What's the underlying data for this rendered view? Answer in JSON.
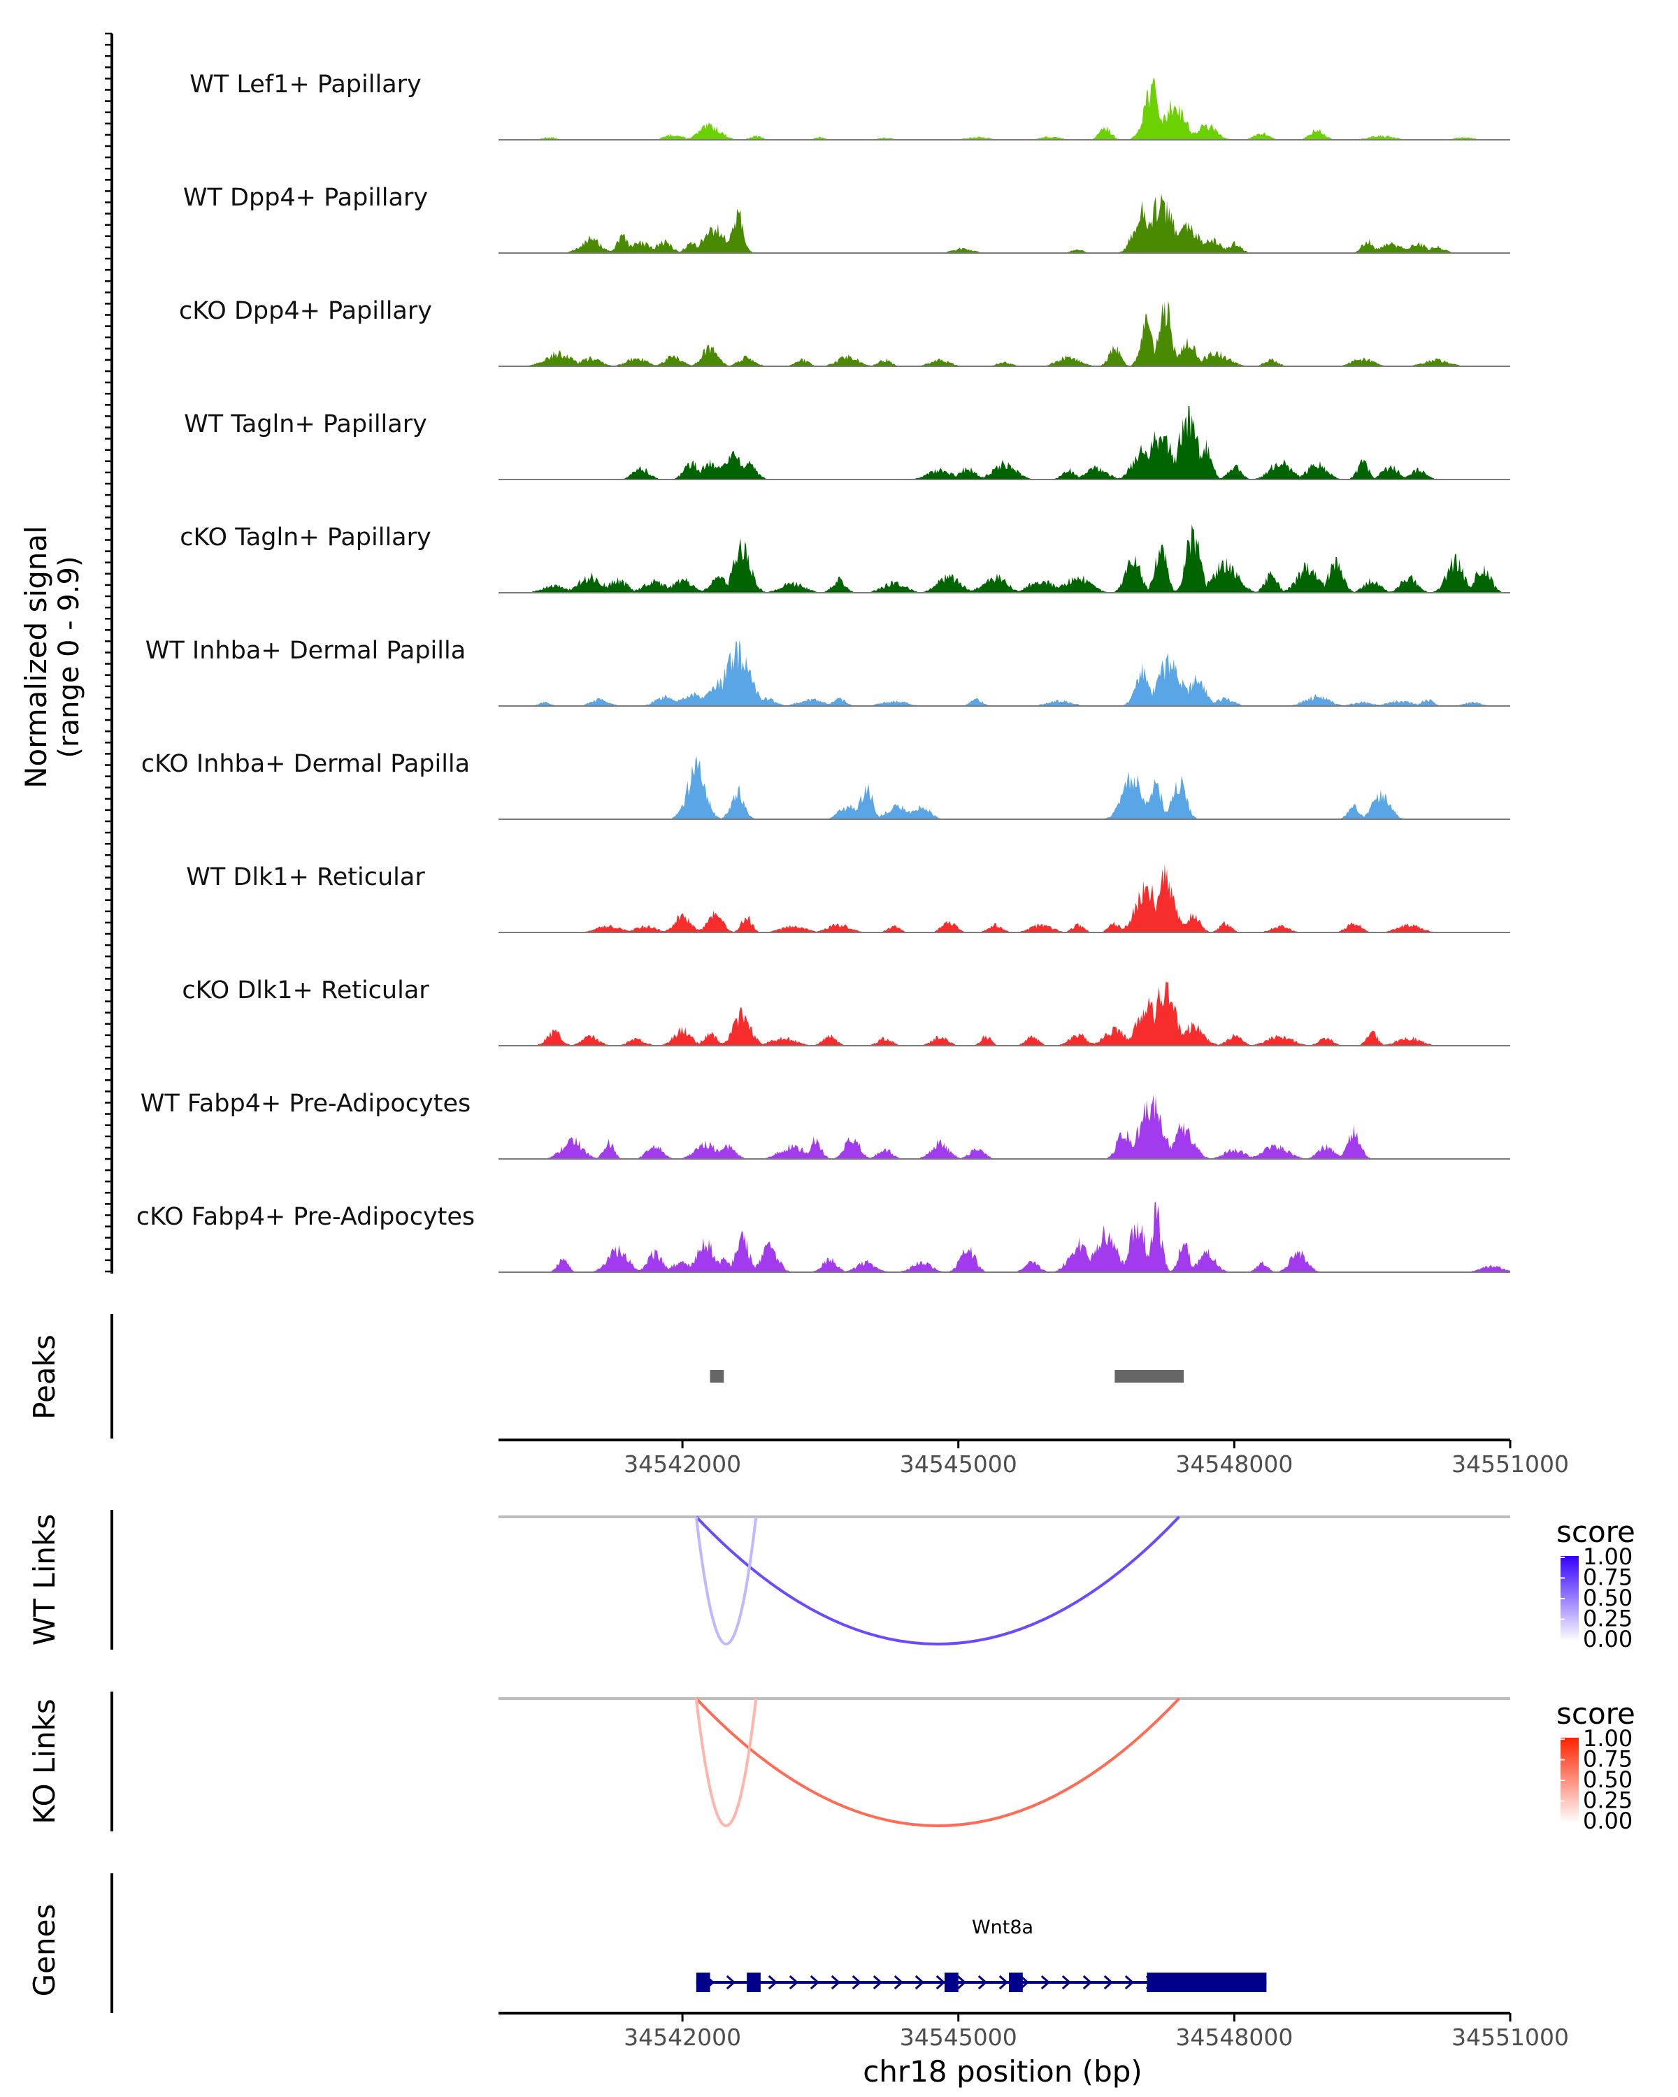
{
  "chart_data": {
    "type": "coverage",
    "chromosome": "chr18",
    "x_range": [
      34540000,
      34551000
    ],
    "x_ticks": [
      34542000,
      34545000,
      34548000,
      34551000
    ],
    "x_tick_labels": [
      "34542000",
      "34545000",
      "34548000",
      "34551000"
    ],
    "xlabel": "chr18 position (bp)",
    "ylabel": "Normalized signal",
    "ylabel_sub": "(range 0 - 9.9)",
    "y_range": [
      0,
      9.9
    ],
    "tracks": [
      {
        "name": "WT Lef1+ Papillary",
        "color": "#6CD100",
        "peaks": [
          [
            34540550,
            0.4
          ],
          [
            34541900,
            0.8
          ],
          [
            34542300,
            2.2
          ],
          [
            34542800,
            0.6
          ],
          [
            34543500,
            0.4
          ],
          [
            34544200,
            0.3
          ],
          [
            34545200,
            0.4
          ],
          [
            34546000,
            0.5
          ],
          [
            34546600,
            1.8
          ],
          [
            34547100,
            8.2
          ],
          [
            34547350,
            5.5
          ],
          [
            34547700,
            2.2
          ],
          [
            34548300,
            1.0
          ],
          [
            34548900,
            1.5
          ],
          [
            34549600,
            0.6
          ],
          [
            34550500,
            0.4
          ]
        ]
      },
      {
        "name": "WT Dpp4+ Papillary",
        "color": "#4A8A00",
        "peaks": [
          [
            34541000,
            2.2
          ],
          [
            34541350,
            2.5
          ],
          [
            34541550,
            1.6
          ],
          [
            34541800,
            1.8
          ],
          [
            34542100,
            1.5
          ],
          [
            34542350,
            3.8
          ],
          [
            34542600,
            6.0
          ],
          [
            34545050,
            0.7
          ],
          [
            34546300,
            0.6
          ],
          [
            34547000,
            6.5
          ],
          [
            34547200,
            7.5
          ],
          [
            34547500,
            4.0
          ],
          [
            34547750,
            2.0
          ],
          [
            34548000,
            1.5
          ],
          [
            34549450,
            2.0
          ],
          [
            34549700,
            1.4
          ],
          [
            34550000,
            1.5
          ],
          [
            34550200,
            1.0
          ]
        ]
      },
      {
        "name": "cKO Dpp4+ Papillary",
        "color": "#4A8A00",
        "peaks": [
          [
            34540650,
            2.0
          ],
          [
            34541000,
            1.2
          ],
          [
            34541500,
            1.3
          ],
          [
            34541900,
            1.5
          ],
          [
            34542300,
            3.0
          ],
          [
            34542700,
            1.4
          ],
          [
            34543300,
            1.0
          ],
          [
            34543800,
            1.5
          ],
          [
            34544200,
            1.0
          ],
          [
            34544800,
            1.0
          ],
          [
            34545500,
            0.6
          ],
          [
            34546200,
            1.5
          ],
          [
            34546700,
            2.8
          ],
          [
            34547050,
            6.8
          ],
          [
            34547250,
            9.5
          ],
          [
            34547500,
            4.0
          ],
          [
            34547800,
            2.0
          ],
          [
            34548400,
            1.0
          ],
          [
            34549400,
            1.2
          ],
          [
            34550200,
            1.0
          ]
        ]
      },
      {
        "name": "WT Tagln+ Papillary",
        "color": "#006400",
        "peaks": [
          [
            34541550,
            1.8
          ],
          [
            34542100,
            2.5
          ],
          [
            34542300,
            2.8
          ],
          [
            34542550,
            4.0
          ],
          [
            34542700,
            2.5
          ],
          [
            34544800,
            1.5
          ],
          [
            34545100,
            1.8
          ],
          [
            34545500,
            2.5
          ],
          [
            34546200,
            1.5
          ],
          [
            34546500,
            1.8
          ],
          [
            34547000,
            4.5
          ],
          [
            34547200,
            7.0
          ],
          [
            34547500,
            9.9
          ],
          [
            34547700,
            5.0
          ],
          [
            34548000,
            2.0
          ],
          [
            34548500,
            2.8
          ],
          [
            34548900,
            2.5
          ],
          [
            34549400,
            2.8
          ],
          [
            34549700,
            2.0
          ],
          [
            34550000,
            1.5
          ]
        ]
      },
      {
        "name": "cKO Tagln+ Papillary",
        "color": "#006400",
        "peaks": [
          [
            34540600,
            1.2
          ],
          [
            34541000,
            2.5
          ],
          [
            34541300,
            2.0
          ],
          [
            34541700,
            1.8
          ],
          [
            34542000,
            2.0
          ],
          [
            34542400,
            2.5
          ],
          [
            34542650,
            7.0
          ],
          [
            34543200,
            1.5
          ],
          [
            34543700,
            2.0
          ],
          [
            34544300,
            1.5
          ],
          [
            34544900,
            2.5
          ],
          [
            34545400,
            2.5
          ],
          [
            34545900,
            2.0
          ],
          [
            34546300,
            2.5
          ],
          [
            34546900,
            5.5
          ],
          [
            34547200,
            7.5
          ],
          [
            34547550,
            9.5
          ],
          [
            34547900,
            4.5
          ],
          [
            34548400,
            3.0
          ],
          [
            34548800,
            4.0
          ],
          [
            34549100,
            4.5
          ],
          [
            34549500,
            2.0
          ],
          [
            34549900,
            2.5
          ],
          [
            34550400,
            5.0
          ],
          [
            34550700,
            4.0
          ]
        ]
      },
      {
        "name": "WT Inhba+ Dermal Papilla",
        "color": "#59A5E5",
        "peaks": [
          [
            34540500,
            0.6
          ],
          [
            34541100,
            1.0
          ],
          [
            34541800,
            1.5
          ],
          [
            34542100,
            1.8
          ],
          [
            34542400,
            3.5
          ],
          [
            34542600,
            8.5
          ],
          [
            34542900,
            1.2
          ],
          [
            34543400,
            1.0
          ],
          [
            34543700,
            1.2
          ],
          [
            34544300,
            0.8
          ],
          [
            34545200,
            1.0
          ],
          [
            34546100,
            0.8
          ],
          [
            34547000,
            5.5
          ],
          [
            34547300,
            7.0
          ],
          [
            34547600,
            4.5
          ],
          [
            34547900,
            1.2
          ],
          [
            34548900,
            1.5
          ],
          [
            34549400,
            0.6
          ],
          [
            34549800,
            0.8
          ],
          [
            34550100,
            1.0
          ],
          [
            34550600,
            0.6
          ]
        ]
      },
      {
        "name": "cKO Inhba+ Dermal Papilla",
        "color": "#59A5E5",
        "peaks": [
          [
            34542150,
            8.0
          ],
          [
            34542600,
            4.5
          ],
          [
            34543800,
            2.0
          ],
          [
            34544000,
            5.0
          ],
          [
            34544350,
            2.0
          ],
          [
            34544600,
            2.0
          ],
          [
            34546900,
            6.5
          ],
          [
            34547150,
            5.5
          ],
          [
            34547400,
            6.0
          ],
          [
            34549300,
            2.0
          ],
          [
            34549600,
            4.0
          ]
        ]
      },
      {
        "name": "WT Dlk1+ Reticular",
        "color": "#F72D2D",
        "peaks": [
          [
            34541200,
            1.0
          ],
          [
            34541600,
            1.0
          ],
          [
            34542000,
            2.5
          ],
          [
            34542350,
            3.0
          ],
          [
            34542700,
            2.5
          ],
          [
            34543200,
            1.0
          ],
          [
            34543700,
            1.2
          ],
          [
            34544300,
            1.0
          ],
          [
            34544900,
            1.8
          ],
          [
            34545400,
            1.2
          ],
          [
            34545900,
            1.2
          ],
          [
            34546300,
            1.2
          ],
          [
            34546700,
            1.5
          ],
          [
            34547050,
            7.0
          ],
          [
            34547250,
            8.5
          ],
          [
            34547550,
            3.0
          ],
          [
            34547900,
            1.5
          ],
          [
            34548500,
            1.0
          ],
          [
            34549300,
            1.5
          ],
          [
            34549900,
            1.2
          ]
        ]
      },
      {
        "name": "cKO Dlk1+ Reticular",
        "color": "#F72D2D",
        "peaks": [
          [
            34540600,
            2.2
          ],
          [
            34541000,
            1.5
          ],
          [
            34541500,
            1.0
          ],
          [
            34542000,
            2.5
          ],
          [
            34542300,
            2.0
          ],
          [
            34542650,
            5.0
          ],
          [
            34543100,
            1.2
          ],
          [
            34543600,
            1.5
          ],
          [
            34544200,
            1.2
          ],
          [
            34544800,
            1.5
          ],
          [
            34545300,
            1.5
          ],
          [
            34545800,
            1.5
          ],
          [
            34546300,
            1.8
          ],
          [
            34546700,
            2.5
          ],
          [
            34547050,
            6.5
          ],
          [
            34547250,
            9.0
          ],
          [
            34547550,
            3.0
          ],
          [
            34548000,
            1.5
          ],
          [
            34548500,
            1.5
          ],
          [
            34549000,
            1.2
          ],
          [
            34549500,
            2.0
          ],
          [
            34549900,
            1.2
          ]
        ]
      },
      {
        "name": "WT Fabp4+ Pre-Adipocytes",
        "color": "#A23AEE",
        "peaks": [
          [
            34540800,
            3.0
          ],
          [
            34541200,
            2.5
          ],
          [
            34541700,
            2.0
          ],
          [
            34542250,
            2.5
          ],
          [
            34542500,
            2.0
          ],
          [
            34543200,
            2.0
          ],
          [
            34543450,
            3.0
          ],
          [
            34543850,
            3.5
          ],
          [
            34544200,
            1.5
          ],
          [
            34544800,
            2.5
          ],
          [
            34545200,
            1.5
          ],
          [
            34546800,
            4.5
          ],
          [
            34547100,
            8.5
          ],
          [
            34547450,
            5.0
          ],
          [
            34548000,
            1.5
          ],
          [
            34548450,
            2.0
          ],
          [
            34549000,
            2.0
          ],
          [
            34549300,
            4.5
          ]
        ]
      },
      {
        "name": "cKO Fabp4+ Pre-Adipocytes",
        "color": "#A23AEE",
        "peaks": [
          [
            34540700,
            2.0
          ],
          [
            34541300,
            3.5
          ],
          [
            34541700,
            3.0
          ],
          [
            34542000,
            1.5
          ],
          [
            34542250,
            5.0
          ],
          [
            34542450,
            2.0
          ],
          [
            34542650,
            5.5
          ],
          [
            34542950,
            4.0
          ],
          [
            34543600,
            2.0
          ],
          [
            34544000,
            1.5
          ],
          [
            34544600,
            1.5
          ],
          [
            34545100,
            4.0
          ],
          [
            34545800,
            1.5
          ],
          [
            34546300,
            4.5
          ],
          [
            34546600,
            6.0
          ],
          [
            34546950,
            7.5
          ],
          [
            34547150,
            9.0
          ],
          [
            34547450,
            4.5
          ],
          [
            34547700,
            3.0
          ],
          [
            34548300,
            1.5
          ],
          [
            34548700,
            3.0
          ],
          [
            34550800,
            1.0
          ]
        ]
      }
    ],
    "peaks_track": {
      "label": "Peaks",
      "regions": [
        [
          34542300,
          34542450
        ],
        [
          34546700,
          34547450
        ]
      ],
      "color": "#666666"
    },
    "links": [
      {
        "label": "WT Links",
        "legend_title": "score",
        "legend_ticks": [
          "1.00",
          "0.75",
          "0.50",
          "0.25",
          "0.00"
        ],
        "color_high": "#3300FF",
        "arcs": [
          {
            "start": 34542150,
            "end": 34547400,
            "score": 0.7
          },
          {
            "start": 34542150,
            "end": 34542800,
            "score": 0.25
          }
        ]
      },
      {
        "label": "KO Links",
        "legend_title": "score",
        "legend_ticks": [
          "1.00",
          "0.75",
          "0.50",
          "0.25",
          "0.00"
        ],
        "color_high": "#FF2200",
        "arcs": [
          {
            "start": 34542150,
            "end": 34547400,
            "score": 0.65
          },
          {
            "start": 34542150,
            "end": 34542800,
            "score": 0.3
          }
        ]
      }
    ],
    "genes": {
      "label": "Genes",
      "name": "Wnt8a",
      "color": "#00008B",
      "start": 34542150,
      "end": 34548350,
      "exons": [
        [
          34542150,
          34542300
        ],
        [
          34542700,
          34542850
        ],
        [
          34544850,
          34545000
        ],
        [
          34545550,
          34545700
        ],
        [
          34547050,
          34548350
        ]
      ]
    }
  }
}
